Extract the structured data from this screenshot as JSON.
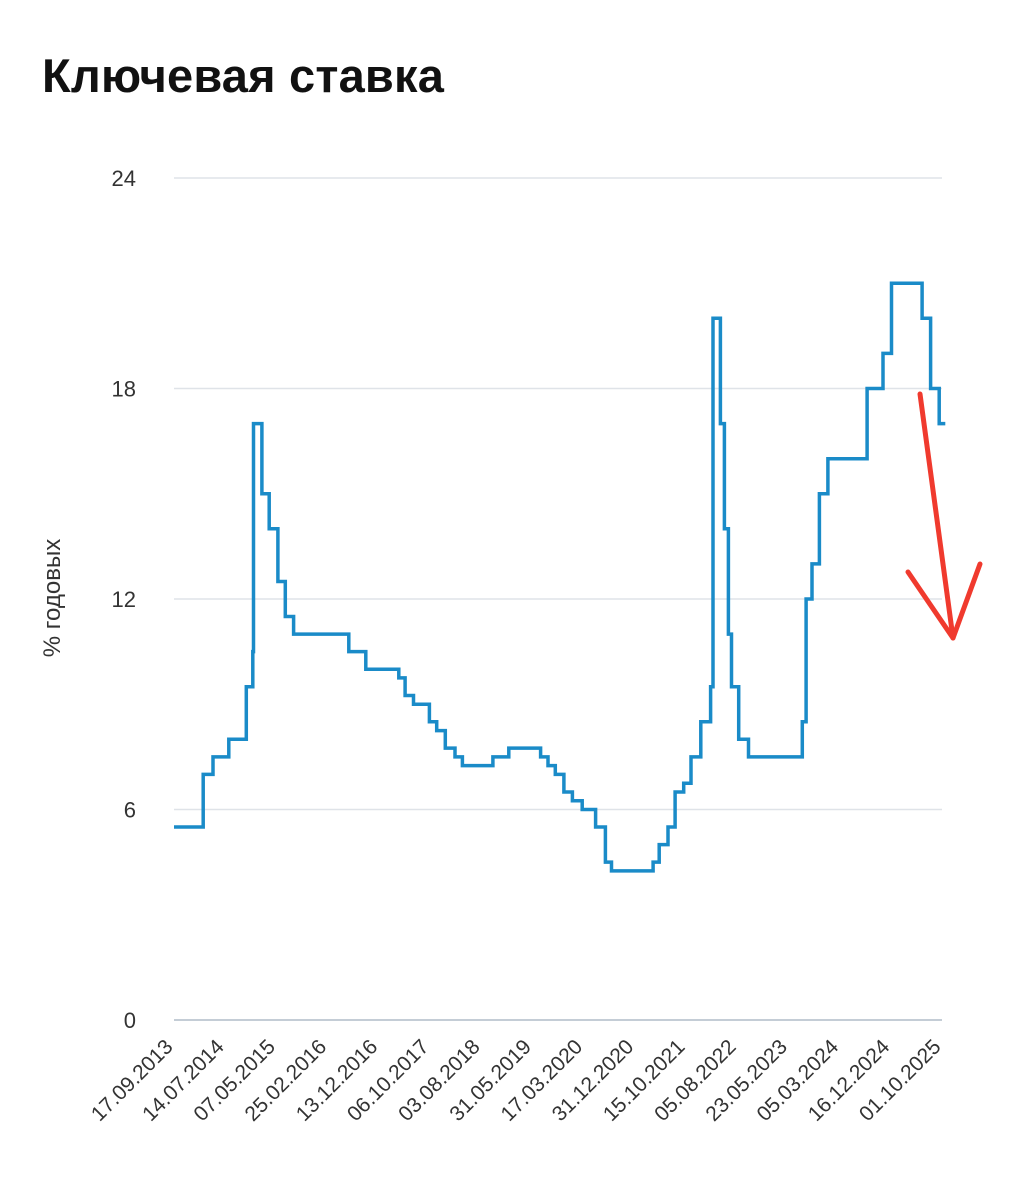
{
  "chart_data": {
    "type": "line",
    "title": "Ключевая ставка",
    "xlabel": "",
    "ylabel": "% годовых",
    "ylim": [
      0,
      24
    ],
    "yticks": [
      0,
      6,
      12,
      18,
      24
    ],
    "grid": true,
    "x_tick_labels": [
      "17.09.2013",
      "14.07.2014",
      "07.05.2015",
      "25.02.2016",
      "13.12.2016",
      "06.10.2017",
      "03.08.2018",
      "31.05.2019",
      "17.03.2020",
      "31.12.2020",
      "15.10.2021",
      "05.08.2022",
      "23.05.2023",
      "05.03.2024",
      "16.12.2024",
      "01.10.2025"
    ],
    "series": [
      {
        "color": "#1a8bc8",
        "step": true,
        "points": [
          [
            "2013-09-17",
            5.5
          ],
          [
            "2014-03-03",
            7.0
          ],
          [
            "2014-04-28",
            7.5
          ],
          [
            "2014-07-28",
            8.0
          ],
          [
            "2014-11-05",
            9.5
          ],
          [
            "2014-12-12",
            10.5
          ],
          [
            "2014-12-16",
            17.0
          ],
          [
            "2015-02-02",
            15.0
          ],
          [
            "2015-03-16",
            14.0
          ],
          [
            "2015-05-05",
            12.5
          ],
          [
            "2015-06-16",
            11.5
          ],
          [
            "2015-08-03",
            11.0
          ],
          [
            "2016-06-14",
            10.5
          ],
          [
            "2016-09-19",
            10.0
          ],
          [
            "2017-03-27",
            9.75
          ],
          [
            "2017-05-02",
            9.25
          ],
          [
            "2017-06-19",
            9.0
          ],
          [
            "2017-09-18",
            8.5
          ],
          [
            "2017-10-30",
            8.25
          ],
          [
            "2017-12-18",
            7.75
          ],
          [
            "2018-02-12",
            7.5
          ],
          [
            "2018-03-26",
            7.25
          ],
          [
            "2018-09-17",
            7.5
          ],
          [
            "2018-12-17",
            7.75
          ],
          [
            "2019-06-17",
            7.5
          ],
          [
            "2019-07-29",
            7.25
          ],
          [
            "2019-09-09",
            7.0
          ],
          [
            "2019-10-28",
            6.5
          ],
          [
            "2019-12-16",
            6.25
          ],
          [
            "2020-02-10",
            6.0
          ],
          [
            "2020-04-27",
            5.5
          ],
          [
            "2020-06-22",
            4.5
          ],
          [
            "2020-07-27",
            4.25
          ],
          [
            "2021-03-22",
            4.5
          ],
          [
            "2021-04-26",
            5.0
          ],
          [
            "2021-06-15",
            5.5
          ],
          [
            "2021-07-26",
            6.5
          ],
          [
            "2021-09-13",
            6.75
          ],
          [
            "2021-10-25",
            7.5
          ],
          [
            "2021-12-20",
            8.5
          ],
          [
            "2022-02-14",
            9.5
          ],
          [
            "2022-02-28",
            20.0
          ],
          [
            "2022-04-11",
            17.0
          ],
          [
            "2022-05-04",
            14.0
          ],
          [
            "2022-05-27",
            11.0
          ],
          [
            "2022-06-14",
            9.5
          ],
          [
            "2022-07-25",
            8.0
          ],
          [
            "2022-09-19",
            7.5
          ],
          [
            "2023-07-24",
            8.5
          ],
          [
            "2023-08-15",
            12.0
          ],
          [
            "2023-09-18",
            13.0
          ],
          [
            "2023-10-30",
            15.0
          ],
          [
            "2023-12-18",
            16.0
          ],
          [
            "2024-07-29",
            18.0
          ],
          [
            "2024-10-28",
            19.0
          ],
          [
            "2024-12-16",
            21.0
          ],
          [
            "2025-06-09",
            20.0
          ],
          [
            "2025-07-28",
            18.0
          ],
          [
            "2025-09-15",
            17.0
          ],
          [
            "2025-10-20",
            17.0
          ]
        ]
      }
    ],
    "annotation": {
      "type": "arrow",
      "direction": "down",
      "color": "#f03a2e"
    }
  }
}
